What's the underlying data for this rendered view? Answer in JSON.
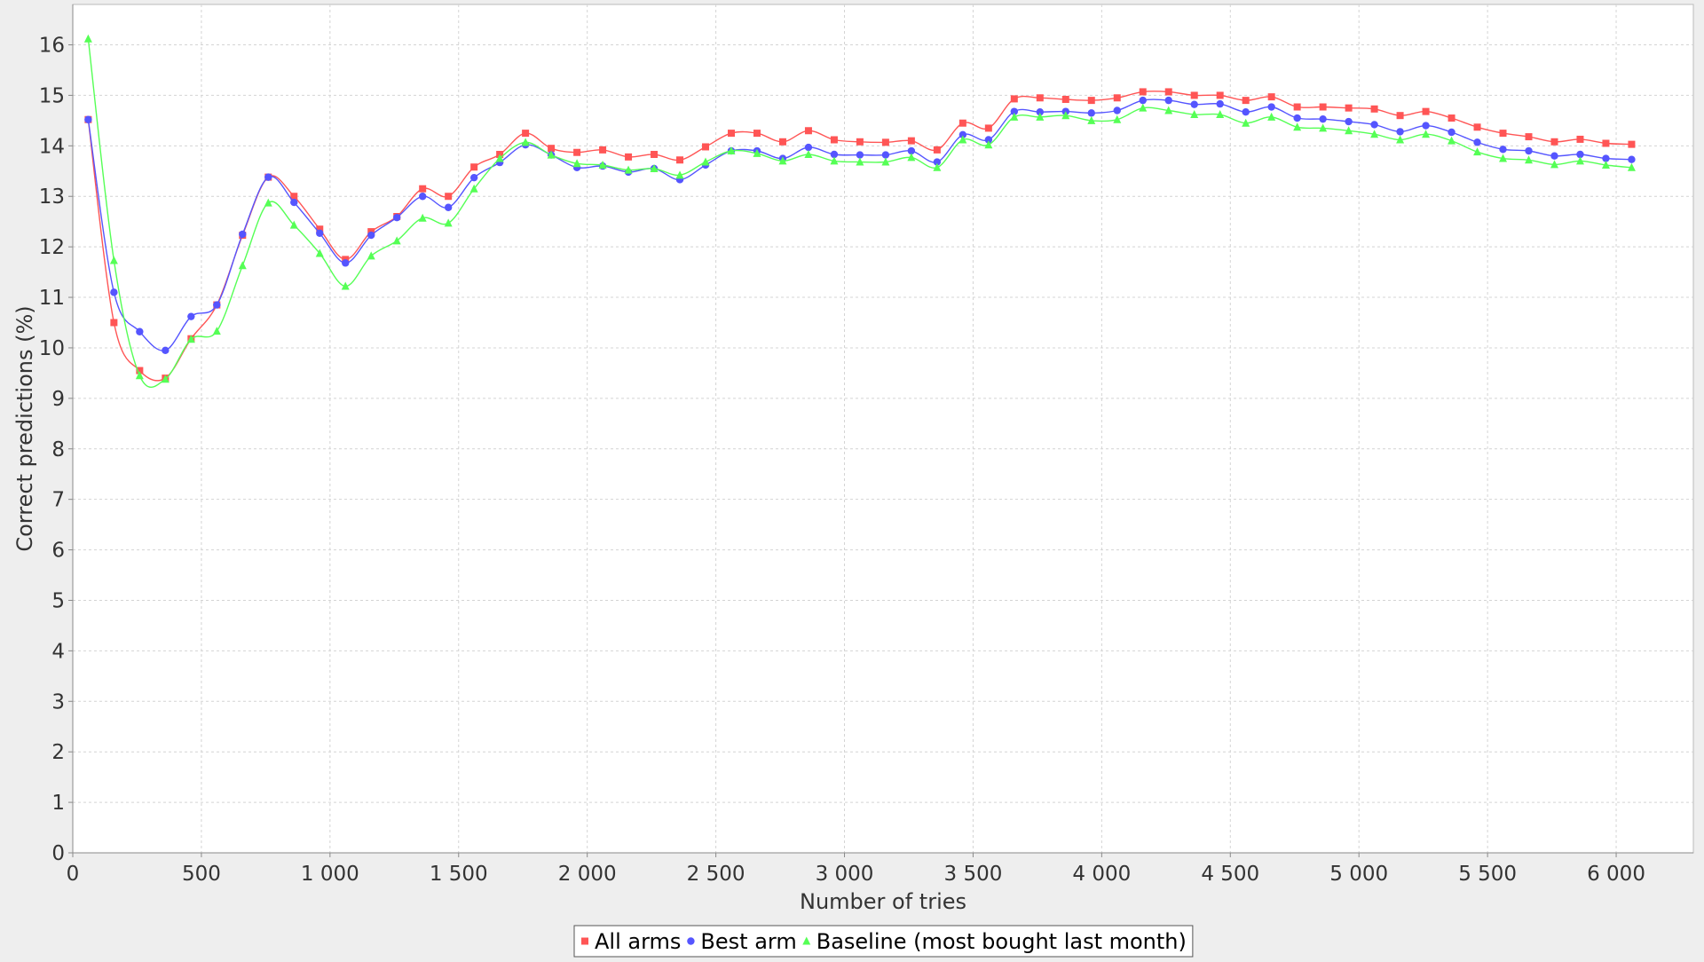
{
  "chart_data": {
    "type": "line",
    "title": "",
    "xlabel": "Number of tries",
    "ylabel": "Correct predictions (%)",
    "xlim": [
      0,
      6300
    ],
    "ylim": [
      0,
      16.8
    ],
    "xticks": [
      0,
      500,
      1000,
      1500,
      2000,
      2500,
      3000,
      3500,
      4000,
      4500,
      5000,
      5500,
      6000
    ],
    "xtick_labels": [
      "0",
      "500",
      "1 000",
      "1 500",
      "2 000",
      "2 500",
      "3 000",
      "3 500",
      "4 000",
      "4 500",
      "5 000",
      "5 500",
      "6 000"
    ],
    "yticks": [
      0,
      1,
      2,
      3,
      4,
      5,
      6,
      7,
      8,
      9,
      10,
      11,
      12,
      13,
      14,
      15,
      16
    ],
    "grid": true,
    "legend_position": "bottom-center",
    "x": [
      60,
      160,
      260,
      360,
      460,
      560,
      660,
      760,
      860,
      960,
      1060,
      1160,
      1260,
      1360,
      1460,
      1560,
      1660,
      1760,
      1860,
      1960,
      2060,
      2160,
      2260,
      2360,
      2460,
      2560,
      2660,
      2760,
      2860,
      2960,
      3060,
      3160,
      3260,
      3360,
      3460,
      3560,
      3660,
      3760,
      3860,
      3960,
      4060,
      4160,
      4260,
      4360,
      4460,
      4560,
      4660,
      4760,
      4860,
      4960,
      5060,
      5160,
      5260,
      5360,
      5460,
      5560,
      5660,
      5760,
      5860,
      5960,
      6060
    ],
    "series": [
      {
        "name": "All arms",
        "color": "#ff5555",
        "marker": "square",
        "values": [
          14.52,
          10.5,
          9.55,
          9.4,
          10.18,
          10.85,
          12.23,
          13.38,
          13.0,
          12.35,
          11.75,
          12.3,
          12.6,
          13.15,
          13.0,
          13.58,
          13.83,
          14.25,
          13.95,
          13.87,
          13.92,
          13.78,
          13.83,
          13.72,
          13.98,
          14.25,
          14.25,
          14.08,
          14.3,
          14.12,
          14.08,
          14.07,
          14.1,
          13.92,
          14.45,
          14.35,
          14.93,
          14.95,
          14.92,
          14.9,
          14.95,
          15.07,
          15.07,
          15.0,
          15.0,
          14.9,
          14.97,
          14.77,
          14.77,
          14.75,
          14.73,
          14.6,
          14.68,
          14.55,
          14.37,
          14.25,
          14.18,
          14.08,
          14.13,
          14.05,
          14.03
        ]
      },
      {
        "name": "Best arm",
        "color": "#5555ff",
        "marker": "circle",
        "values": [
          14.52,
          11.1,
          10.32,
          9.95,
          10.62,
          10.85,
          12.25,
          13.38,
          12.88,
          12.27,
          11.68,
          12.23,
          12.58,
          13.0,
          12.78,
          13.37,
          13.67,
          14.02,
          13.82,
          13.57,
          13.6,
          13.48,
          13.55,
          13.33,
          13.62,
          13.9,
          13.9,
          13.75,
          13.97,
          13.83,
          13.82,
          13.82,
          13.9,
          13.68,
          14.22,
          14.12,
          14.68,
          14.67,
          14.68,
          14.65,
          14.7,
          14.9,
          14.9,
          14.82,
          14.83,
          14.67,
          14.77,
          14.55,
          14.53,
          14.48,
          14.42,
          14.28,
          14.4,
          14.27,
          14.07,
          13.93,
          13.9,
          13.8,
          13.83,
          13.75,
          13.73
        ]
      },
      {
        "name": "Baseline (most bought last month)",
        "color": "#55ff55",
        "marker": "triangle",
        "values": [
          16.12,
          11.73,
          9.45,
          9.38,
          10.17,
          10.33,
          11.63,
          12.87,
          12.43,
          11.87,
          11.22,
          11.82,
          12.12,
          12.57,
          12.47,
          13.15,
          13.75,
          14.07,
          13.82,
          13.65,
          13.62,
          13.52,
          13.55,
          13.42,
          13.68,
          13.9,
          13.85,
          13.7,
          13.83,
          13.7,
          13.68,
          13.68,
          13.77,
          13.57,
          14.12,
          14.02,
          14.57,
          14.57,
          14.6,
          14.5,
          14.52,
          14.75,
          14.7,
          14.62,
          14.62,
          14.45,
          14.57,
          14.37,
          14.35,
          14.3,
          14.23,
          14.12,
          14.23,
          14.1,
          13.88,
          13.75,
          13.72,
          13.63,
          13.7,
          13.62,
          13.57
        ]
      }
    ]
  }
}
